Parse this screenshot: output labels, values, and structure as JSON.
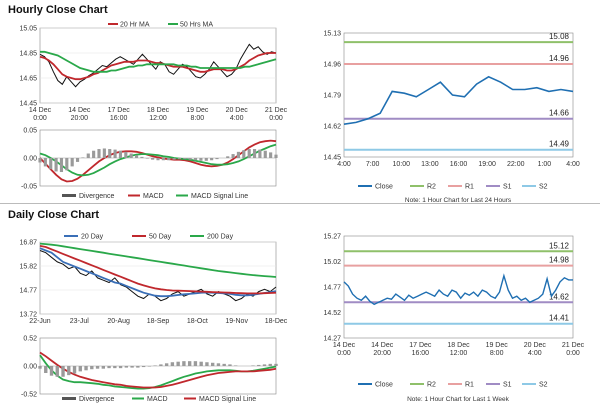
{
  "sections": {
    "hourly_title": "Hourly Close Chart",
    "daily_title": "Daily Close Chart"
  },
  "colors": {
    "price": "#111111",
    "ma_short": "#c0282d",
    "ma_long": "#2aa84a",
    "macd": "#c0282d",
    "signal": "#2aa84a",
    "divergence": "#555555",
    "close": "#1f6fb2",
    "r2": "#8fc06a",
    "r1": "#e8a0a0",
    "s1": "#a08cc4",
    "s2": "#8ec9e6",
    "ma20_daily": "#3a6fb7"
  },
  "chart_data": [
    {
      "id": "hourly-price",
      "type": "line",
      "x_ticks": [
        [
          "14 Dec",
          "0:00"
        ],
        [
          "14 Dec",
          "20:00"
        ],
        [
          "17 Dec",
          "16:00"
        ],
        [
          "18 Dec",
          "12:00"
        ],
        [
          "19 Dec",
          "8:00"
        ],
        [
          "20 Dec",
          "4:00"
        ],
        [
          "21 Dec",
          "0:00"
        ]
      ],
      "y_ticks": [
        "15.05",
        "14.85",
        "14.65",
        "14.45"
      ],
      "ylim": [
        14.45,
        15.05
      ],
      "legend": [
        "20 Hr MA",
        "50 Hrs MA"
      ],
      "series": [
        {
          "name": "Close",
          "values": [
            14.84,
            14.82,
            14.78,
            14.7,
            14.63,
            14.6,
            14.66,
            14.62,
            14.58,
            14.62,
            14.64,
            14.67,
            14.69,
            14.72,
            14.75,
            14.74,
            14.77,
            14.8,
            14.82,
            14.8,
            14.78,
            14.76,
            14.8,
            14.84,
            14.8,
            14.76,
            14.72,
            14.78,
            14.76,
            14.7,
            14.68,
            14.72,
            14.76,
            14.74,
            14.7,
            14.66,
            14.65,
            14.68,
            14.72,
            14.78,
            14.74,
            14.7,
            14.66,
            14.68,
            14.72,
            14.8,
            14.86,
            14.92,
            14.88,
            14.9,
            14.86,
            14.84,
            14.86,
            14.85
          ]
        },
        {
          "name": "20 Hr MA",
          "values": [
            14.82,
            14.81,
            14.79,
            14.76,
            14.72,
            14.68,
            14.66,
            14.65,
            14.64,
            14.64,
            14.65,
            14.66,
            14.68,
            14.69,
            14.71,
            14.73,
            14.75,
            14.76,
            14.77,
            14.78,
            14.78,
            14.78,
            14.79,
            14.79,
            14.79,
            14.78,
            14.77,
            14.77,
            14.76,
            14.75,
            14.74,
            14.74,
            14.74,
            14.73,
            14.72,
            14.71,
            14.7,
            14.7,
            14.71,
            14.72,
            14.72,
            14.72,
            14.71,
            14.71,
            14.72,
            14.74,
            14.76,
            14.79,
            14.81,
            14.83,
            14.84,
            14.85,
            14.85,
            14.85
          ]
        },
        {
          "name": "50 Hrs MA",
          "values": [
            14.86,
            14.86,
            14.85,
            14.84,
            14.83,
            14.81,
            14.79,
            14.77,
            14.75,
            14.73,
            14.72,
            14.71,
            14.7,
            14.7,
            14.7,
            14.7,
            14.71,
            14.71,
            14.72,
            14.73,
            14.74,
            14.74,
            14.75,
            14.75,
            14.76,
            14.76,
            14.76,
            14.76,
            14.76,
            14.76,
            14.76,
            14.75,
            14.75,
            14.75,
            14.74,
            14.74,
            14.73,
            14.73,
            14.73,
            14.73,
            14.73,
            14.73,
            14.73,
            14.73,
            14.73,
            14.73,
            14.74,
            14.74,
            14.75,
            14.76,
            14.77,
            14.78,
            14.79,
            14.8
          ]
        }
      ]
    },
    {
      "id": "hourly-macd",
      "type": "line",
      "y_ticks": [
        "0.05",
        "0.00",
        "-0.05"
      ],
      "ylim": [
        -0.05,
        0.05
      ],
      "legend": [
        "Divergence",
        "MACD",
        "MACD Signal Line"
      ],
      "series": [
        {
          "name": "MACD",
          "values": [
            0.0,
            -0.01,
            -0.02,
            -0.03,
            -0.038,
            -0.042,
            -0.041,
            -0.037,
            -0.03,
            -0.022,
            -0.014,
            -0.006,
            0.0,
            0.005,
            0.009,
            0.011,
            0.012,
            0.012,
            0.011,
            0.009,
            0.006,
            0.003,
            0.001,
            -0.001,
            -0.002,
            -0.003,
            -0.003,
            -0.004,
            -0.006,
            -0.009,
            -0.012,
            -0.014,
            -0.015,
            -0.014,
            -0.012,
            -0.008,
            -0.002,
            0.005,
            0.012,
            0.019,
            0.024,
            0.028,
            0.03,
            0.031,
            0.03
          ]
        },
        {
          "name": "MACD Signal Line",
          "values": [
            0.008,
            0.005,
            0.0,
            -0.006,
            -0.013,
            -0.02,
            -0.026,
            -0.03,
            -0.031,
            -0.03,
            -0.027,
            -0.022,
            -0.017,
            -0.011,
            -0.006,
            -0.002,
            0.001,
            0.004,
            0.006,
            0.007,
            0.007,
            0.006,
            0.005,
            0.003,
            0.002,
            0.0,
            -0.001,
            -0.002,
            -0.003,
            -0.005,
            -0.007,
            -0.009,
            -0.011,
            -0.012,
            -0.012,
            -0.011,
            -0.009,
            -0.006,
            -0.002,
            0.003,
            0.008,
            0.013,
            0.017,
            0.021,
            0.024
          ]
        },
        {
          "name": "Divergence",
          "values": [
            -0.008,
            -0.015,
            -0.02,
            -0.024,
            -0.025,
            -0.022,
            -0.015,
            -0.007,
            0.001,
            0.008,
            0.013,
            0.016,
            0.017,
            0.016,
            0.015,
            0.013,
            0.011,
            0.008,
            0.005,
            0.002,
            -0.001,
            -0.003,
            -0.004,
            -0.004,
            -0.004,
            -0.003,
            -0.002,
            -0.002,
            -0.003,
            -0.004,
            -0.005,
            -0.005,
            -0.004,
            -0.002,
            0.0,
            0.003,
            0.007,
            0.011,
            0.014,
            0.016,
            0.016,
            0.015,
            0.013,
            0.01,
            0.006
          ]
        }
      ]
    },
    {
      "id": "hourly-levels",
      "type": "line",
      "x_ticks": [
        "4:00",
        "7:00",
        "10:00",
        "13:00",
        "16:00",
        "19:00",
        "22:00",
        "1:00",
        "4:00"
      ],
      "y_ticks": [
        "15.13",
        "14.96",
        "14.79",
        "14.62",
        "14.45"
      ],
      "ylim": [
        14.45,
        15.13
      ],
      "legend": [
        "Close",
        "R2",
        "R1",
        "S1",
        "S2"
      ],
      "levels": {
        "R2": "15.08",
        "R1": "14.96",
        "S1": "14.66",
        "S2": "14.49"
      },
      "note": "Note: 1 Hour Chart for Last 24 Hours",
      "series": [
        {
          "name": "Close",
          "values": [
            14.63,
            14.64,
            14.66,
            14.69,
            14.81,
            14.8,
            14.78,
            14.82,
            14.86,
            14.79,
            14.78,
            14.85,
            14.89,
            14.86,
            14.82,
            14.82,
            14.83,
            14.81,
            14.82,
            14.81
          ]
        }
      ]
    },
    {
      "id": "daily-price",
      "type": "line",
      "x_ticks": [
        "22-Jun",
        "23-Jul",
        "20-Aug",
        "18-Sep",
        "18-Oct",
        "19-Nov",
        "18-Dec"
      ],
      "y_ticks": [
        "16.87",
        "15.82",
        "14.77",
        "13.72"
      ],
      "ylim": [
        13.72,
        16.87
      ],
      "legend": [
        "20 Day",
        "50 Day",
        "200 Day"
      ],
      "series": [
        {
          "name": "Close",
          "values": [
            16.5,
            16.4,
            16.2,
            16.0,
            15.9,
            15.7,
            15.8,
            15.5,
            15.4,
            15.6,
            15.3,
            15.2,
            15.1,
            15.3,
            15.0,
            14.9,
            14.7,
            14.5,
            14.4,
            14.6,
            14.5,
            14.3,
            14.4,
            14.6,
            14.7,
            14.5,
            14.6,
            14.7,
            14.8,
            14.6,
            14.5,
            14.7,
            14.6,
            14.5,
            14.3,
            14.4,
            14.6,
            14.5,
            14.7,
            14.8,
            14.7,
            14.9
          ]
        },
        {
          "name": "20 Day",
          "values": [
            16.6,
            16.5,
            16.4,
            16.2,
            16.0,
            15.9,
            15.8,
            15.7,
            15.6,
            15.5,
            15.4,
            15.3,
            15.2,
            15.1,
            15.05,
            14.95,
            14.85,
            14.75,
            14.65,
            14.58,
            14.52,
            14.5,
            14.5,
            14.52,
            14.55,
            14.58,
            14.6,
            14.62,
            14.65,
            14.66,
            14.65,
            14.64,
            14.62,
            14.6,
            14.56,
            14.54,
            14.54,
            14.56,
            14.6,
            14.64,
            14.68,
            14.72
          ]
        },
        {
          "name": "50 Day",
          "values": [
            16.7,
            16.65,
            16.55,
            16.45,
            16.35,
            16.25,
            16.15,
            16.05,
            15.95,
            15.85,
            15.75,
            15.65,
            15.55,
            15.45,
            15.35,
            15.25,
            15.15,
            15.05,
            14.97,
            14.9,
            14.84,
            14.8,
            14.77,
            14.75,
            14.74,
            14.73,
            14.72,
            14.71,
            14.7,
            14.69,
            14.68,
            14.67,
            14.66,
            14.65,
            14.64,
            14.63,
            14.62,
            14.62,
            14.62,
            14.63,
            14.64,
            14.65
          ]
        },
        {
          "name": "200 Day",
          "values": [
            16.8,
            16.78,
            16.75,
            16.72,
            16.68,
            16.64,
            16.6,
            16.56,
            16.52,
            16.48,
            16.44,
            16.4,
            16.36,
            16.32,
            16.28,
            16.24,
            16.2,
            16.16,
            16.12,
            16.08,
            16.04,
            16.0,
            15.96,
            15.92,
            15.88,
            15.84,
            15.8,
            15.76,
            15.72,
            15.68,
            15.64,
            15.6,
            15.57,
            15.54,
            15.51,
            15.48,
            15.45,
            15.42,
            15.4,
            15.38,
            15.36,
            15.34
          ]
        }
      ]
    },
    {
      "id": "daily-macd",
      "type": "line",
      "y_ticks": [
        "0.52",
        "0.00",
        "-0.52"
      ],
      "ylim": [
        -0.52,
        0.52
      ],
      "legend": [
        "Divergence",
        "MACD",
        "MACD Signal Line"
      ],
      "series": [
        {
          "name": "MACD",
          "values": [
            0.2,
            0.05,
            -0.08,
            -0.18,
            -0.25,
            -0.28,
            -0.3,
            -0.3,
            -0.31,
            -0.32,
            -0.33,
            -0.35,
            -0.36,
            -0.38,
            -0.39,
            -0.4,
            -0.41,
            -0.42,
            -0.42,
            -0.41,
            -0.39,
            -0.36,
            -0.32,
            -0.28,
            -0.24,
            -0.2,
            -0.17,
            -0.14,
            -0.12,
            -0.1,
            -0.09,
            -0.08,
            -0.08,
            -0.08,
            -0.09,
            -0.1,
            -0.1,
            -0.09,
            -0.07,
            -0.05,
            -0.03,
            -0.01
          ]
        },
        {
          "name": "MACD Signal Line",
          "values": [
            0.25,
            0.18,
            0.1,
            0.02,
            -0.05,
            -0.11,
            -0.16,
            -0.2,
            -0.23,
            -0.26,
            -0.28,
            -0.3,
            -0.32,
            -0.34,
            -0.35,
            -0.37,
            -0.38,
            -0.39,
            -0.4,
            -0.4,
            -0.4,
            -0.39,
            -0.37,
            -0.35,
            -0.32,
            -0.29,
            -0.26,
            -0.23,
            -0.2,
            -0.17,
            -0.15,
            -0.13,
            -0.12,
            -0.11,
            -0.1,
            -0.1,
            -0.1,
            -0.1,
            -0.09,
            -0.08,
            -0.07,
            -0.05
          ]
        },
        {
          "name": "Divergence",
          "values": [
            -0.05,
            -0.13,
            -0.18,
            -0.2,
            -0.2,
            -0.17,
            -0.14,
            -0.1,
            -0.08,
            -0.06,
            -0.05,
            -0.05,
            -0.04,
            -0.04,
            -0.04,
            -0.03,
            -0.03,
            -0.03,
            -0.02,
            -0.01,
            0.01,
            0.03,
            0.05,
            0.07,
            0.08,
            0.09,
            0.09,
            0.09,
            0.08,
            0.07,
            0.06,
            0.05,
            0.04,
            0.03,
            0.01,
            0.0,
            0.0,
            0.01,
            0.02,
            0.03,
            0.04,
            0.04
          ]
        }
      ]
    },
    {
      "id": "weekly-levels",
      "type": "line",
      "x_ticks": [
        [
          "14 Dec",
          "0:00"
        ],
        [
          "14 Dec",
          "20:00"
        ],
        [
          "17 Dec",
          "16:00"
        ],
        [
          "18 Dec",
          "12:00"
        ],
        [
          "19 Dec",
          "8:00"
        ],
        [
          "20 Dec",
          "4:00"
        ],
        [
          "21 Dec",
          "0:00"
        ]
      ],
      "y_ticks": [
        "15.27",
        "15.02",
        "14.77",
        "14.52",
        "14.27"
      ],
      "ylim": [
        14.27,
        15.27
      ],
      "legend": [
        "Close",
        "R2",
        "R1",
        "S1",
        "S2"
      ],
      "levels": {
        "R2": "15.12",
        "R1": "14.98",
        "S1": "14.62",
        "S2": "14.41"
      },
      "note": "Note: 1 Hour Chart for Last 1 Week",
      "series": [
        {
          "name": "Close",
          "values": [
            14.82,
            14.78,
            14.7,
            14.66,
            14.64,
            14.68,
            14.63,
            14.6,
            14.62,
            14.64,
            14.66,
            14.65,
            14.7,
            14.67,
            14.64,
            14.69,
            14.66,
            14.68,
            14.7,
            14.72,
            14.7,
            14.68,
            14.74,
            14.7,
            14.68,
            14.74,
            14.72,
            14.66,
            14.71,
            14.69,
            14.72,
            14.68,
            14.74,
            14.72,
            14.68,
            14.66,
            14.72,
            14.88,
            14.74,
            14.66,
            14.68,
            14.64,
            14.66,
            14.62,
            14.64,
            14.66,
            14.7,
            14.85,
            14.68,
            14.74,
            14.82,
            14.86,
            14.84,
            14.84
          ]
        }
      ]
    }
  ]
}
